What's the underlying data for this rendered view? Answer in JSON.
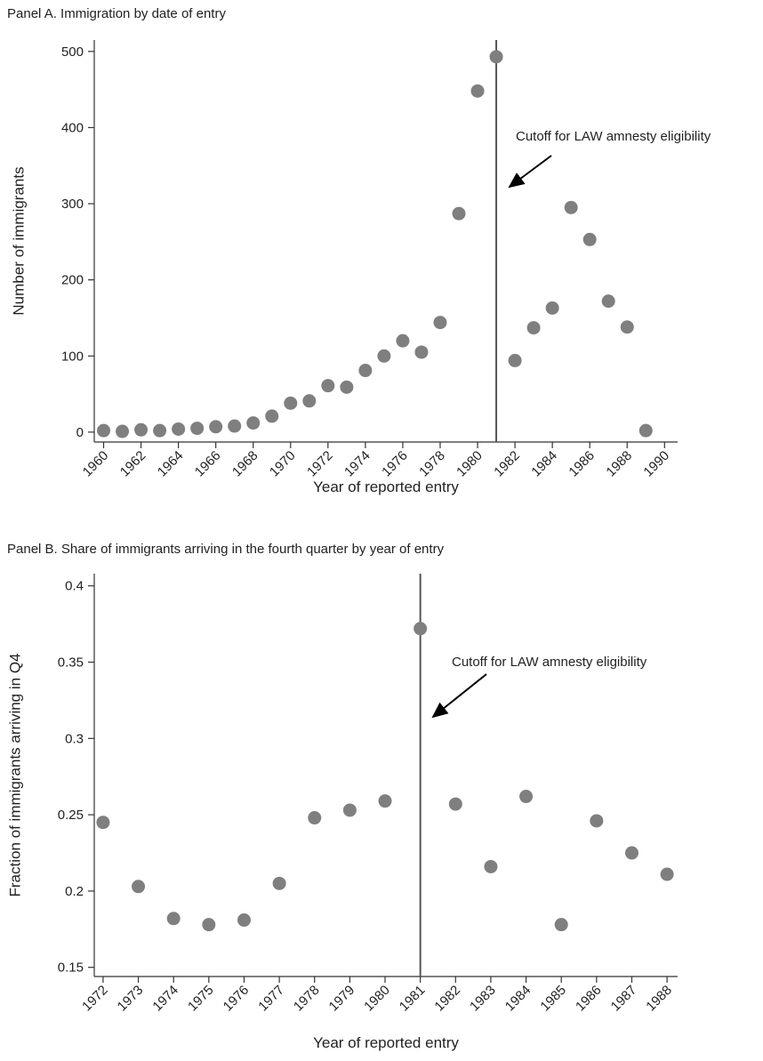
{
  "chart_data": [
    {
      "type": "scatter",
      "title": "Panel A. Immigration by date of entry",
      "x_label": "Year of reported entry",
      "y_label": "Number of immigrants",
      "x": [
        1960,
        1961,
        1962,
        1963,
        1964,
        1965,
        1966,
        1967,
        1968,
        1969,
        1970,
        1971,
        1972,
        1973,
        1974,
        1975,
        1976,
        1977,
        1978,
        1979,
        1980,
        1981,
        1982,
        1983,
        1984,
        1985,
        1986,
        1987,
        1988,
        1989
      ],
      "values": [
        2,
        1,
        3,
        2,
        4,
        5,
        7,
        8,
        12,
        21,
        38,
        41,
        61,
        59,
        81,
        100,
        120,
        105,
        144,
        287,
        448,
        493,
        94,
        137,
        163,
        295,
        253,
        172,
        138,
        2
      ],
      "color": "#7f7f7f",
      "xlim": [
        1959.5,
        1990.7
      ],
      "ylim": [
        -13,
        515
      ],
      "xticks": [
        1960,
        1962,
        1964,
        1966,
        1968,
        1970,
        1972,
        1974,
        1976,
        1978,
        1980,
        1982,
        1984,
        1986,
        1988,
        1990
      ],
      "yticks": [
        0,
        100,
        200,
        300,
        400,
        500
      ],
      "vline": 1981,
      "annotation": "Cutoff for LAW amnesty eligibility"
    },
    {
      "type": "scatter",
      "title": "Panel B. Share of immigrants arriving in the fourth quarter by year of entry",
      "x_label": "Year of reported entry",
      "y_label": "Fraction of immigrants arriving in Q4",
      "x": [
        1972,
        1973,
        1974,
        1975,
        1976,
        1977,
        1978,
        1979,
        1980,
        1981,
        1982,
        1983,
        1984,
        1985,
        1986,
        1987,
        1988
      ],
      "values": [
        0.245,
        0.203,
        0.182,
        0.178,
        0.181,
        0.205,
        0.248,
        0.253,
        0.259,
        0.372,
        0.257,
        0.216,
        0.262,
        0.178,
        0.246,
        0.225,
        0.211
      ],
      "color": "#7f7f7f",
      "xlim": [
        1971.75,
        1988.3
      ],
      "ylim": [
        0.144,
        0.408
      ],
      "xticks": [
        1972,
        1973,
        1974,
        1975,
        1976,
        1977,
        1978,
        1979,
        1980,
        1981,
        1982,
        1983,
        1984,
        1985,
        1986,
        1987,
        1988
      ],
      "yticks": [
        0.15,
        0.2,
        0.25,
        0.3,
        0.35,
        0.4
      ],
      "vline": 1981,
      "annotation": "Cutoff for LAW amnesty eligibility"
    }
  ]
}
